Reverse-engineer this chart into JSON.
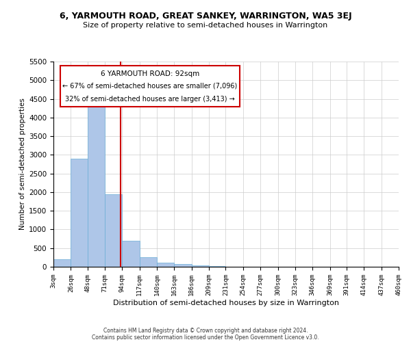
{
  "title": "6, YARMOUTH ROAD, GREAT SANKEY, WARRINGTON, WA5 3EJ",
  "subtitle": "Size of property relative to semi-detached houses in Warrington",
  "xlabel": "Distribution of semi-detached houses by size in Warrington",
  "ylabel": "Number of semi-detached properties",
  "property_size": 92,
  "property_label": "6 YARMOUTH ROAD: 92sqm",
  "pct_smaller": 67,
  "n_smaller": 7096,
  "pct_larger": 32,
  "n_larger": 3413,
  "bin_edges": [
    3,
    26,
    48,
    71,
    94,
    117,
    140,
    163,
    186,
    209,
    231,
    254,
    277,
    300,
    323,
    346,
    369,
    391,
    414,
    437,
    460
  ],
  "bin_labels": [
    "3sqm",
    "26sqm",
    "48sqm",
    "71sqm",
    "94sqm",
    "117sqm",
    "140sqm",
    "163sqm",
    "186sqm",
    "209sqm",
    "231sqm",
    "254sqm",
    "277sqm",
    "300sqm",
    "323sqm",
    "346sqm",
    "369sqm",
    "391sqm",
    "414sqm",
    "437sqm",
    "460sqm"
  ],
  "bar_heights": [
    200,
    2900,
    4380,
    1950,
    700,
    250,
    110,
    80,
    40,
    15,
    5,
    3,
    2,
    1,
    1,
    0,
    0,
    0,
    0,
    0
  ],
  "bar_color": "#aec6e8",
  "bar_edge_color": "#6aaed6",
  "line_color": "#cc0000",
  "ylim": [
    0,
    5500
  ],
  "yticks": [
    0,
    500,
    1000,
    1500,
    2000,
    2500,
    3000,
    3500,
    4000,
    4500,
    5000,
    5500
  ],
  "grid_color": "#cccccc",
  "background_color": "#ffffff",
  "annotation_box_color": "#ffffff",
  "footer_line1": "Contains HM Land Registry data © Crown copyright and database right 2024.",
  "footer_line2": "Contains public sector information licensed under the Open Government Licence v3.0."
}
